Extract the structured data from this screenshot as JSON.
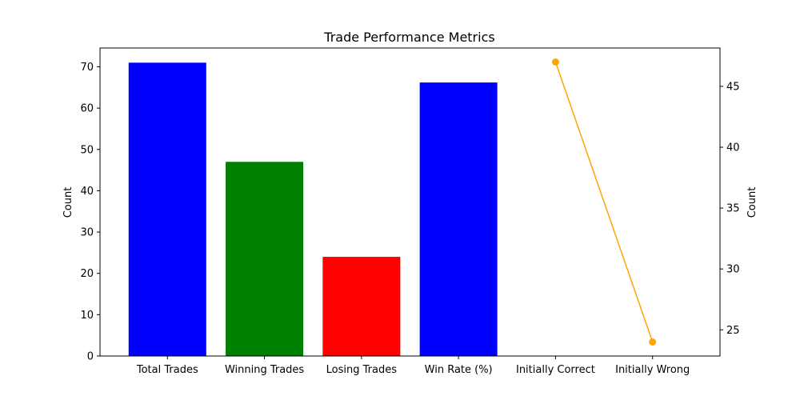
{
  "chart_data": {
    "type": "bar",
    "title": "Trade Performance Metrics",
    "categories": [
      "Total Trades",
      "Winning Trades",
      "Losing Trades",
      "Win Rate (%)",
      "Initially Correct",
      "Initially Wrong"
    ],
    "bars": {
      "values": [
        71,
        47,
        24,
        66.2
      ],
      "colors": [
        "#0000ff",
        "#008000",
        "#ff0000",
        "#0000ff"
      ],
      "ylabel": "Count",
      "ylim": [
        0,
        74.55
      ],
      "yticks": [
        0,
        10,
        20,
        30,
        40,
        50,
        60,
        70
      ]
    },
    "line": {
      "categories": [
        "Initially Correct",
        "Initially Wrong"
      ],
      "values": [
        47,
        24
      ],
      "color": "#ffa500",
      "ylabel": "Count",
      "ylim": [
        22.85,
        48.15
      ],
      "yticks": [
        25,
        30,
        35,
        40,
        45
      ]
    },
    "grid": false,
    "legend": "none"
  }
}
